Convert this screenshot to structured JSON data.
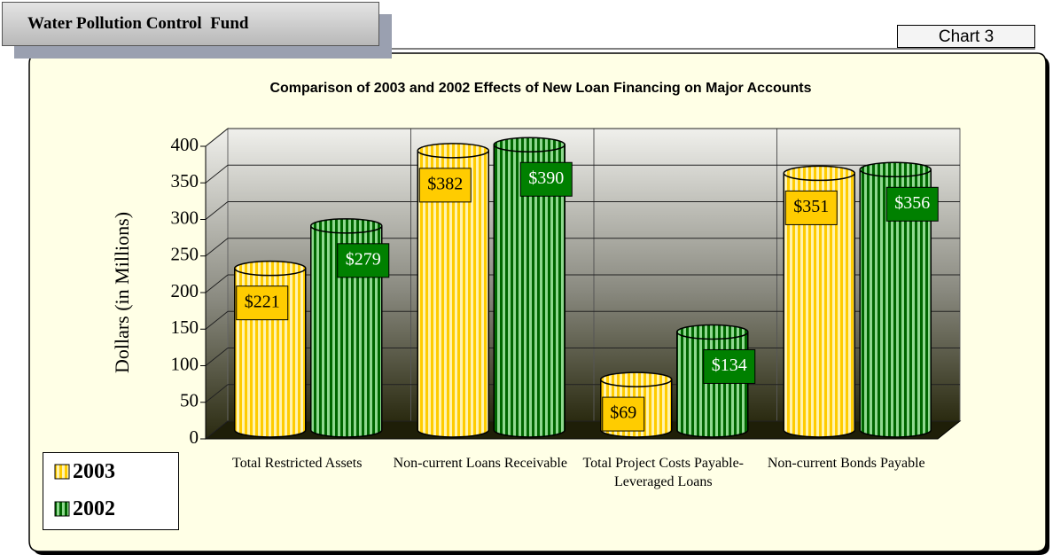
{
  "header": {
    "title": "Water Pollution Control  Fund",
    "tag": "Chart 3"
  },
  "chart_data": {
    "type": "bar3d",
    "title": "Comparison of 2003 and 2002 Effects of New Loan Financing on Major Accounts",
    "y_label": "Dollars (in Millions)",
    "categories": [
      "Total Restricted Assets",
      "Non-current Loans Receivable",
      "Total Project Costs Payable-Leveraged Loans",
      "Non-current Bonds Payable"
    ],
    "series": [
      {
        "name": "2003",
        "color": "#ffcc00",
        "values": [
          221,
          382,
          69,
          351
        ],
        "value_labels": [
          "$221",
          "$382",
          "$69",
          "$351"
        ]
      },
      {
        "name": "2002",
        "color": "#008000",
        "values": [
          279,
          390,
          134,
          356
        ],
        "value_labels": [
          "$279",
          "$390",
          "$134",
          "$356"
        ]
      }
    ],
    "ylim": [
      0,
      400
    ],
    "yticks": [
      0,
      50,
      100,
      150,
      200,
      250,
      300,
      350,
      400
    ],
    "grid": true
  }
}
